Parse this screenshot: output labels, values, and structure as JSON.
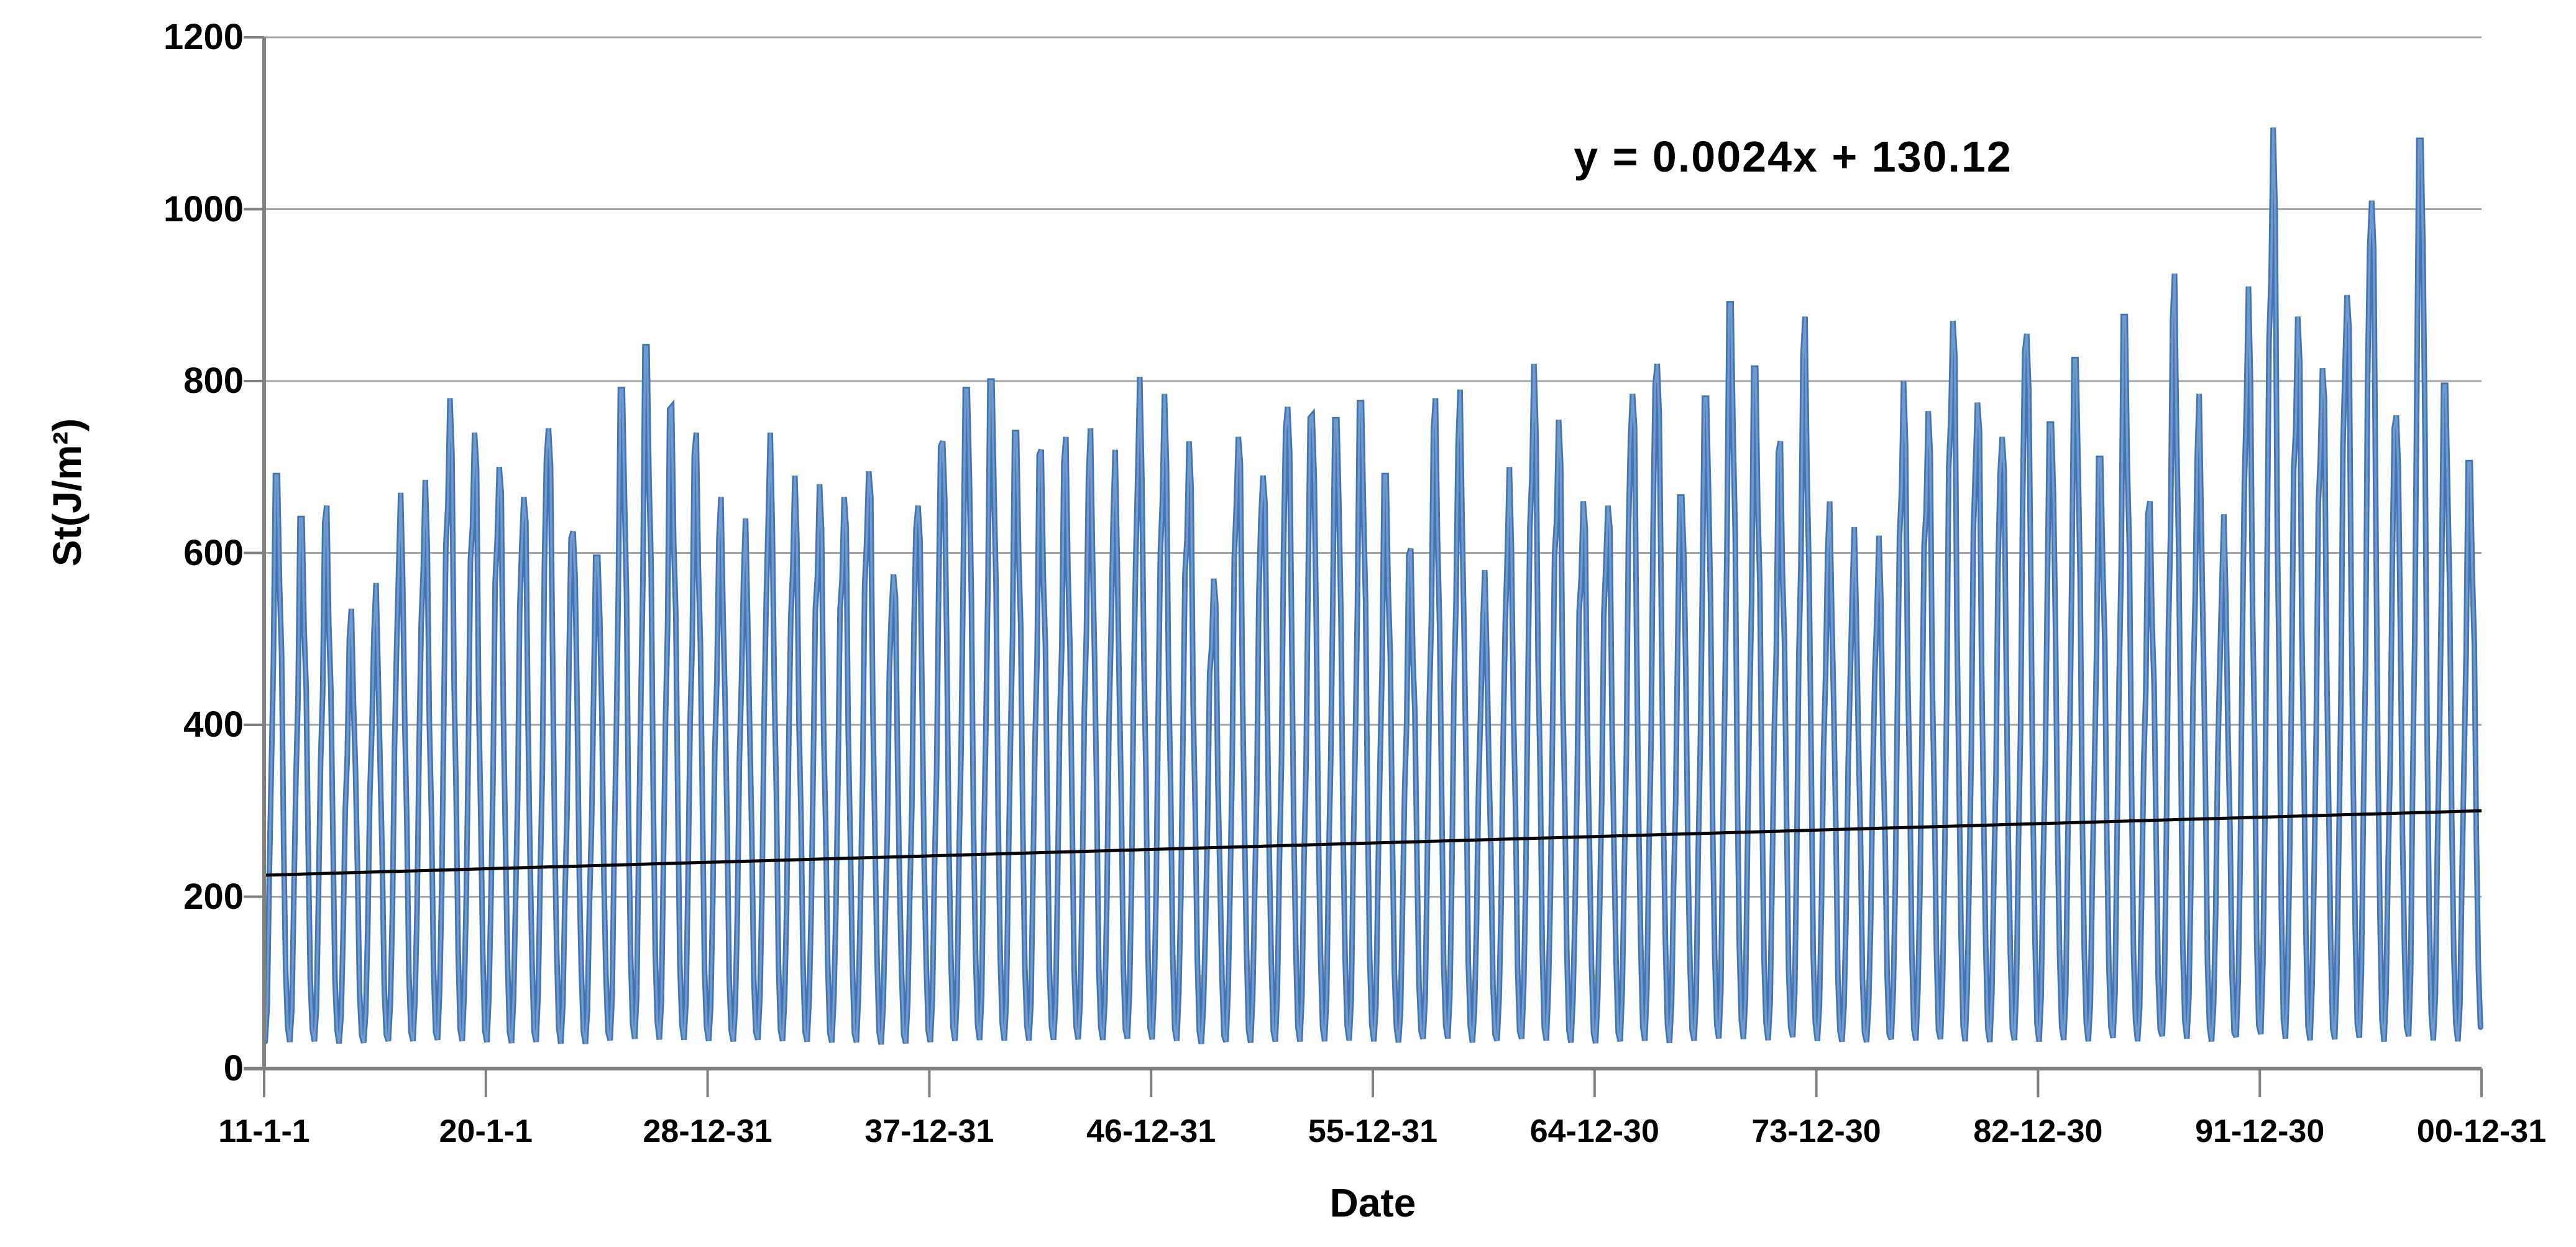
{
  "chart_data": {
    "type": "line",
    "title": "",
    "ylabel": "St(J/m²)",
    "xlabel": "Date",
    "equation": "y = 0.0024x + 130.12",
    "legend": "none",
    "grid": "horizontal",
    "ylim": [
      0,
      1200
    ],
    "y_ticks": [
      0,
      200,
      400,
      600,
      800,
      1000,
      1200
    ],
    "x_tick_labels": [
      "11-1-1",
      "20-1-1",
      "28-12-31",
      "37-12-31",
      "46-12-31",
      "55-12-31",
      "64-12-30",
      "73-12-30",
      "82-12-30",
      "91-12-30",
      "00-12-31"
    ],
    "x_range_years": {
      "start": 1911,
      "end": 2000,
      "n_years": 90
    },
    "points_per_year": 12,
    "winter_min": 18,
    "seasonal_shape": [
      0.02,
      0.09,
      0.28,
      0.5,
      0.73,
      0.93,
      1.0,
      0.87,
      0.63,
      0.38,
      0.15,
      0.04
    ],
    "annual_peaks": [
      690,
      640,
      655,
      535,
      565,
      670,
      685,
      780,
      740,
      700,
      665,
      745,
      625,
      595,
      790,
      840,
      770,
      740,
      665,
      640,
      740,
      690,
      680,
      665,
      695,
      575,
      655,
      730,
      790,
      800,
      740,
      720,
      735,
      745,
      720,
      805,
      785,
      730,
      570,
      735,
      690,
      770,
      760,
      755,
      775,
      690,
      605,
      780,
      790,
      580,
      700,
      820,
      755,
      660,
      655,
      785,
      820,
      665,
      780,
      890,
      815,
      730,
      875,
      660,
      630,
      620,
      800,
      765,
      870,
      775,
      735,
      855,
      750,
      825,
      710,
      875,
      660,
      925,
      785,
      645,
      910,
      1095,
      875,
      815,
      900,
      1010,
      760,
      1080,
      795,
      705
    ],
    "trendline": {
      "start_value": 225,
      "end_value": 300,
      "equation": "y = 0.0024x + 130.12"
    },
    "colors": {
      "series_stroke": "#4273b3",
      "series_highlight": "#7099cd",
      "trendline": "#000000",
      "gridline": "#a6a6a6",
      "axis": "#808080",
      "text": "#000000",
      "background": "#ffffff"
    }
  }
}
